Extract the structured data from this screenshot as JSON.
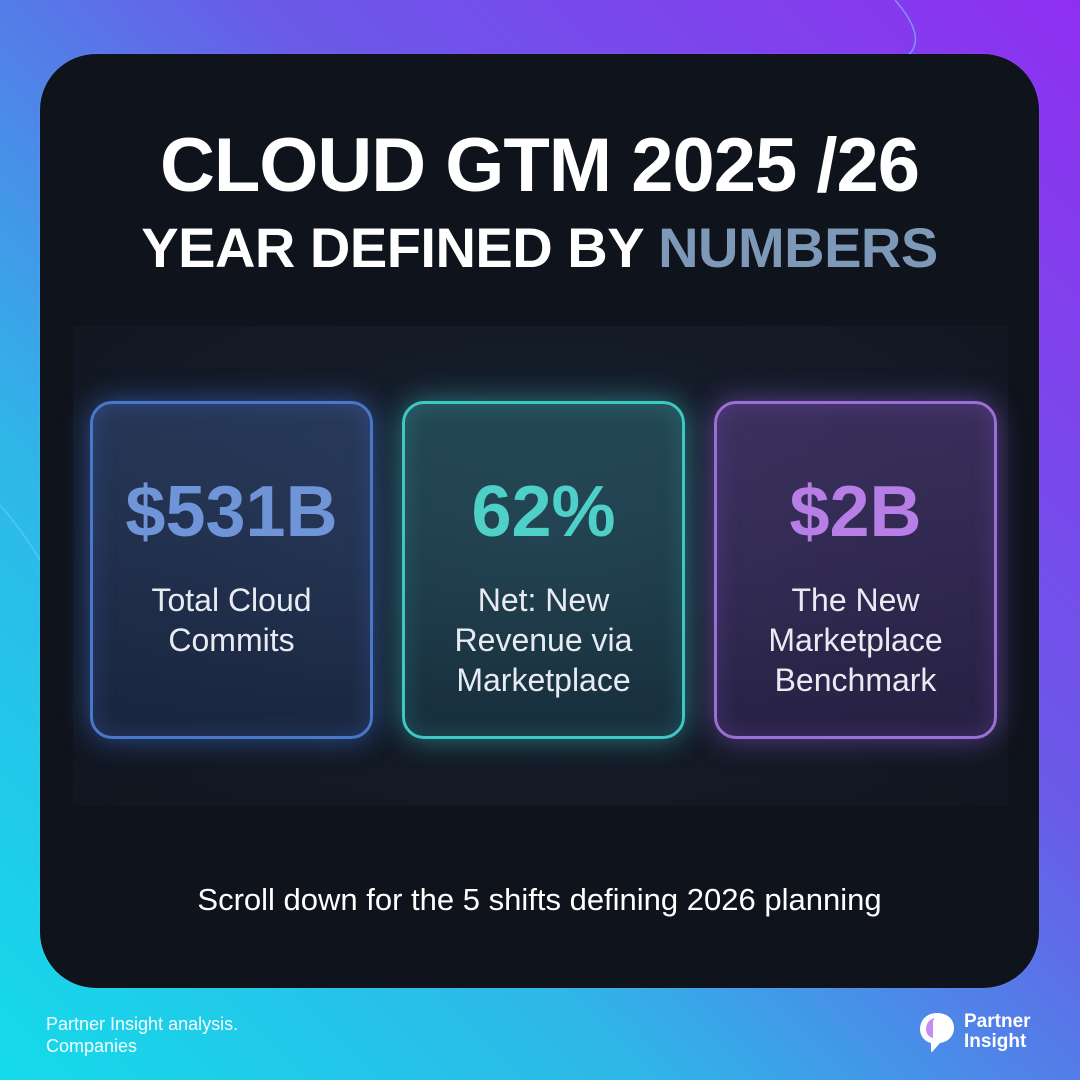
{
  "colors": {
    "background_start": "#14dbea",
    "background_end": "#8f2ff0",
    "card_background": "#0f131c",
    "accent_text": "#7e99b8",
    "stat_blue": "#6f95d8",
    "stat_teal": "#4ed0c8",
    "stat_purple": "#b77ee6"
  },
  "header": {
    "title": "CLOUD GTM 2025 /26",
    "subtitle_prefix": "YEAR DEFINED BY ",
    "subtitle_accent": "NUMBERS"
  },
  "stats": [
    {
      "value": "$531B",
      "label": "Total Cloud Commits",
      "color": "blue"
    },
    {
      "value": "62%",
      "label": "Net: New Revenue via Marketplace",
      "color": "teal"
    },
    {
      "value": "$2B",
      "label": "The New Marketplace Benchmark",
      "color": "purple"
    }
  ],
  "cta": "Scroll down for the 5 shifts defining 2026 planning",
  "footer": {
    "note_line1": "Partner Insight analysis.",
    "note_line2": "Companies",
    "brand_line1": "Partner",
    "brand_line2": "Insight",
    "brand_icon": "partner-insight-logo-icon"
  }
}
